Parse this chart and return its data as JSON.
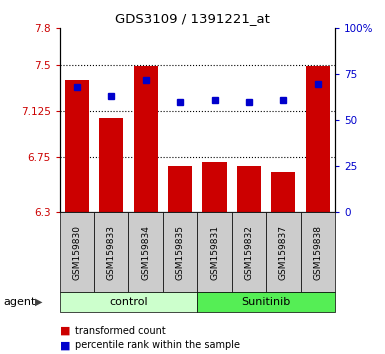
{
  "title": "GDS3109 / 1391221_at",
  "samples": [
    "GSM159830",
    "GSM159833",
    "GSM159834",
    "GSM159835",
    "GSM159831",
    "GSM159832",
    "GSM159837",
    "GSM159838"
  ],
  "bar_values": [
    7.38,
    7.07,
    7.49,
    6.68,
    6.71,
    6.68,
    6.63,
    7.49
  ],
  "percentile_values": [
    68,
    63,
    72,
    60,
    61,
    60,
    61,
    70
  ],
  "ylim_left": [
    6.3,
    7.8
  ],
  "ylim_right": [
    0,
    100
  ],
  "yticks_left": [
    6.3,
    6.75,
    7.125,
    7.5,
    7.8
  ],
  "ytick_labels_left": [
    "6.3",
    "6.75",
    "7.125",
    "7.5",
    "7.8"
  ],
  "yticks_right": [
    0,
    25,
    50,
    75,
    100
  ],
  "ytick_labels_right": [
    "0",
    "25",
    "50",
    "75",
    "100%"
  ],
  "hlines": [
    7.5,
    7.125,
    6.75
  ],
  "bar_color": "#cc0000",
  "dot_color": "#0000cc",
  "bar_width": 0.7,
  "groups": [
    {
      "label": "control",
      "indices": [
        0,
        1,
        2,
        3
      ],
      "color": "#ccffcc"
    },
    {
      "label": "Sunitinib",
      "indices": [
        4,
        5,
        6,
        7
      ],
      "color": "#55ee55"
    }
  ],
  "agent_label": "agent",
  "legend_bar_label": "transformed count",
  "legend_dot_label": "percentile rank within the sample",
  "left_color": "#cc0000",
  "right_color": "#0000cc",
  "sample_bg_color": "#cccccc",
  "background_color": "#ffffff"
}
